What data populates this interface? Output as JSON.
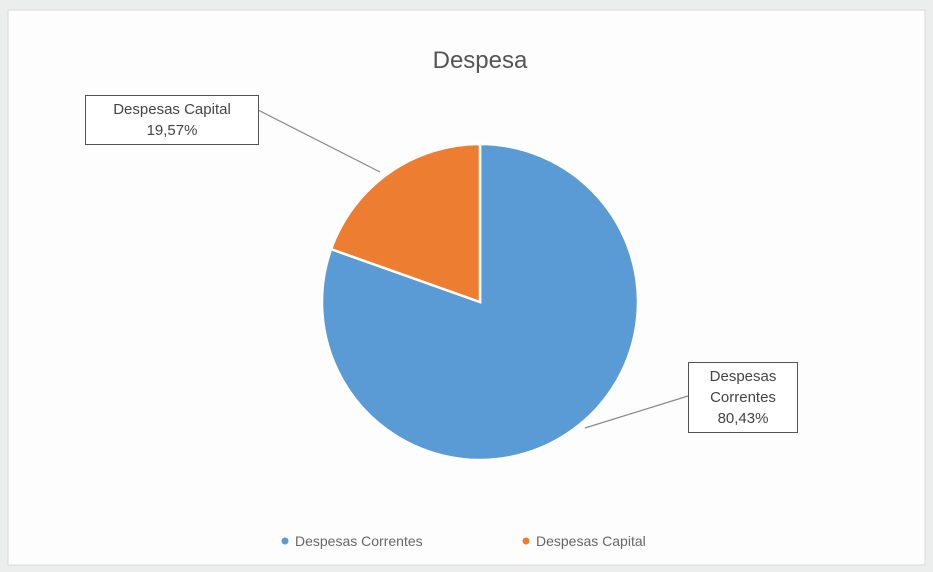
{
  "chart_data": {
    "type": "pie",
    "title": "Despesa",
    "categories": [
      "Despesas Correntes",
      "Despesas Capital"
    ],
    "values": [
      80.43,
      19.57
    ],
    "value_labels": [
      "80,43%",
      "19,57%"
    ],
    "colors": [
      "#5b9bd5",
      "#ed7d31"
    ],
    "legend": "bottom"
  }
}
